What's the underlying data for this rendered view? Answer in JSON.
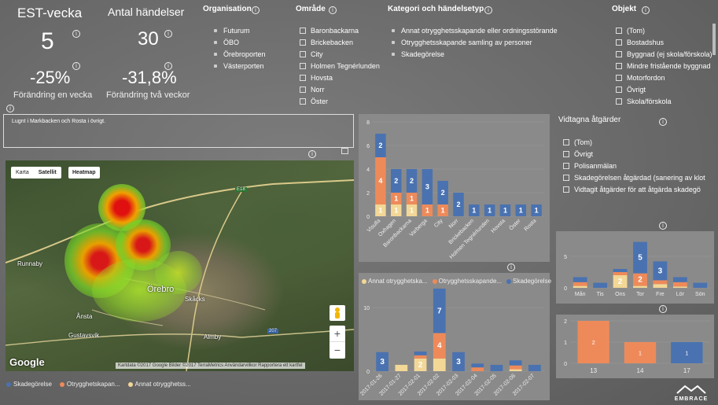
{
  "colors": {
    "blue": "#4a72b0",
    "orange": "#ee8a5a",
    "yellow": "#f2d796",
    "panel": "#8a8a8a"
  },
  "kpis": {
    "week_title": "EST-vecka",
    "week_value": "5",
    "week_change": "-25%",
    "week_change_label": "Förändring en vecka",
    "events_title": "Antal händelser",
    "events_value": "30",
    "events_change": "-31,8%",
    "events_change_label": "Förändring två veckor"
  },
  "slicers": {
    "organisation": {
      "title": "Organisation",
      "items": [
        "Futurum",
        "ÖBO",
        "Örebroporten",
        "Västerporten"
      ]
    },
    "omrade": {
      "title": "Område",
      "items": [
        "Baronbackarna",
        "Brickebacken",
        "City",
        "Holmen Tegnérlunden",
        "Hovsta",
        "Norr",
        "Öster"
      ]
    },
    "kategori": {
      "title": "Kategori och händelsetyp",
      "items": [
        "Annat otrygghetsskapande eller ordningsstörande",
        "Otrygghetsskapande samling av personer",
        "Skadegörelse"
      ]
    },
    "objekt": {
      "title": "Objekt",
      "items": [
        "(Tom)",
        "Bostadshus",
        "Byggnad (ej skola/förskola)",
        "Mindre fristående byggnad",
        "Motorfordon",
        "Övrigt",
        "Skola/förskola"
      ]
    },
    "atgarder": {
      "title": "Vidtagna åtgärder",
      "items": [
        "(Tom)",
        "Övrigt",
        "Polisanmälan",
        "Skadegörelsen åtgärdad (sanering av klot",
        "Vidtagit åtgärder för att åtgärda skadegö"
      ]
    }
  },
  "comment": "Lugnt i Markbacken och Rosta i övrigt.",
  "map": {
    "btn_karta": "Karta",
    "btn_satellit": "Satellit",
    "btn_heatmap": "Heatmap",
    "labels": [
      "Runnaby",
      "Gustavsvik",
      "Örebro",
      "Skåcks",
      "Almby",
      "Ånsta",
      "E18",
      "207"
    ],
    "google": "Google",
    "footer": "Kartdata ©2017 Google Bilder ©2017 TerraMetrics    Användarvillkor    Rapportera ett kartfel",
    "zoom_in": "+",
    "zoom_out": "−"
  },
  "map_legend": [
    {
      "label": "Skadegörelse",
      "color": "#4a72b0"
    },
    {
      "label": "Otrygghetskapan...",
      "color": "#ee8a5a"
    },
    {
      "label": "Annat otrygghetss...",
      "color": "#f2d796"
    }
  ],
  "line_legend": [
    {
      "label": "Annat otrygghetska...",
      "color": "#f2d796"
    },
    {
      "label": "Otrygghetsskapande...",
      "color": "#ee8a5a"
    },
    {
      "label": "Skadegörelse",
      "color": "#4a72b0"
    }
  ],
  "brand": "EMBRACE",
  "chart_data": [
    {
      "type": "bar",
      "stacked": true,
      "categories": [
        "Visulla",
        "Oxhagen",
        "Baronbackarna",
        "Varberga",
        "City",
        "Norr",
        "Brickebacken",
        "Holmen Tegnérlunden",
        "Hovsta",
        "Öster",
        "Rosta"
      ],
      "series": [
        {
          "name": "Annat otrygghetska...",
          "values": [
            1,
            1,
            1,
            0,
            0,
            0,
            0,
            0,
            0,
            0,
            0
          ]
        },
        {
          "name": "Otrygghetsskapande...",
          "values": [
            4,
            1,
            1,
            1,
            1,
            0,
            0,
            0,
            0,
            0,
            0
          ]
        },
        {
          "name": "Skadegörelse",
          "values": [
            2,
            2,
            2,
            3,
            2,
            2,
            1,
            1,
            1,
            1,
            1
          ]
        }
      ],
      "yticks": [
        0,
        2,
        4,
        6,
        8
      ],
      "ylim": [
        0,
        8
      ]
    },
    {
      "type": "bar",
      "stacked": true,
      "categories": [
        "Mån",
        "Tis",
        "Ons",
        "Tor",
        "Fre",
        "Lör",
        "Sön"
      ],
      "series": [
        {
          "name": "Annat otrygghetska...",
          "values": [
            0.3,
            0,
            2,
            0.3,
            0.6,
            0.2,
            0
          ]
        },
        {
          "name": "Otrygghetsskapande...",
          "values": [
            0.6,
            0,
            0.5,
            2,
            0.6,
            0.7,
            0
          ]
        },
        {
          "name": "Skadegörelse",
          "values": [
            0.8,
            0.8,
            0.5,
            5,
            3,
            0.8,
            0.8
          ]
        }
      ],
      "value_labels": [
        [],
        [],
        [
          "2",
          "",
          ""
        ],
        [
          "",
          "2",
          "5"
        ],
        [
          "",
          "",
          "3"
        ],
        [],
        []
      ],
      "yticks": [
        0,
        5
      ],
      "ylim": [
        0,
        8
      ]
    },
    {
      "type": "bar",
      "stacked": true,
      "categories": [
        "2017-01-26",
        "2017-01-27",
        "2017-02-01",
        "2017-02-02",
        "2017-02-03",
        "2017-02-04",
        "2017-02-05",
        "2017-02-06",
        "2017-02-07"
      ],
      "series": [
        {
          "name": "Annat otrygghetska...",
          "values": [
            0,
            1,
            2,
            2,
            0,
            0,
            0,
            0.3,
            0
          ]
        },
        {
          "name": "Otrygghetsskapande...",
          "values": [
            0,
            0,
            0.5,
            4,
            0,
            0.6,
            0,
            0.6,
            0
          ]
        },
        {
          "name": "Skadegörelse",
          "values": [
            3,
            0,
            0.6,
            7,
            3,
            0.6,
            1,
            0.8,
            1
          ]
        }
      ],
      "value_labels": [
        [
          "",
          "",
          "3"
        ],
        [],
        [
          "2",
          "",
          ""
        ],
        [
          "",
          "4",
          "7"
        ],
        [
          "",
          "",
          "3"
        ],
        [],
        [],
        [],
        []
      ],
      "yticks": [
        0,
        10
      ],
      "ylim": [
        0,
        13
      ]
    },
    {
      "type": "bar",
      "categories": [
        "13",
        "14",
        "17"
      ],
      "values": [
        2,
        1,
        1
      ],
      "colors": [
        "#ee8a5a",
        "#ee8a5a",
        "#4a72b0"
      ],
      "yticks": [
        0,
        1,
        2
      ],
      "ylim": [
        0,
        2
      ]
    }
  ]
}
